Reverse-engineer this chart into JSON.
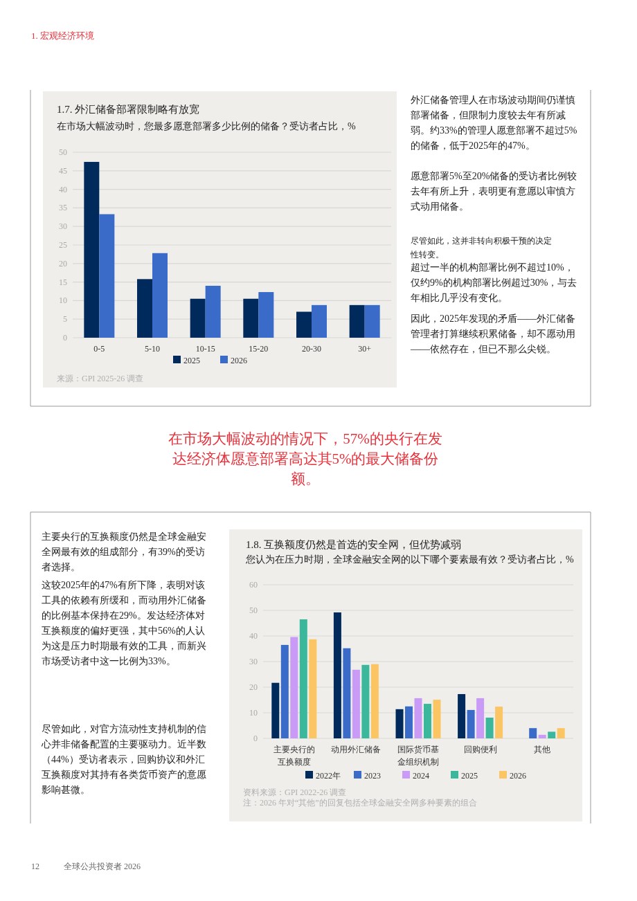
{
  "chart_data": [
    {
      "type": "other",
      "annotations": [
        "1. 宏观经济环境"
      ]
    },
    {
      "type": "bar",
      "title": "1.7. 外汇储备部署限制略有放宽",
      "subtitle": "在市场大幅波动时，您最多愿意部署多少比例的储备？受访者占比，%",
      "categories": [
        "0-5",
        "5-10",
        "10-15",
        "15-20",
        "20-30",
        "30+"
      ],
      "series": [
        {
          "name": "2025",
          "color": "#002a5c",
          "values": [
            47.4,
            15.8,
            10.5,
            10.5,
            7.0,
            8.8
          ]
        },
        {
          "name": "2026",
          "color": "#3a6bc8",
          "values": [
            33.3,
            22.8,
            14.0,
            12.3,
            8.8,
            8.8
          ]
        }
      ],
      "ylim": [
        0,
        50
      ],
      "yticks": [
        0,
        5,
        10,
        15,
        20,
        25,
        30,
        35,
        40,
        45,
        50
      ],
      "grid": "y",
      "legend": "bottom",
      "annotations": [
        "来源：GPI 2025-26 调查"
      ]
    },
    {
      "type": "other",
      "annotations": [
        "外汇储备管理人在市场波动期间仍谨慎部署储备，但限制力度较去年有所减弱。约33%的管理人愿意部署不超过5%的储备，低于2025年的47%。",
        "愿意部署5%至20%储备的受访者比例较去年有所上升，表明更有意愿以审慎方式动用储备。",
        "尽管如此，这并非转向积极干预的决定性转变。",
        "超过一半的机构部署比例不超过10%，仅约9%的机构部署比例超过30%，与去年相比几乎没有变化。",
        "因此，2025年发现的矛盾——外汇储备管理者打算继续积累储备，却不愿动用——依然存在，但已不那么尖锐。"
      ]
    },
    {
      "type": "other",
      "annotations": [
        "在市场大幅波动的情况下，57%的央行在发达经济体愿意部署高达其5%的最大储备份额。"
      ]
    },
    {
      "type": "other",
      "annotations": [
        "主要央行的互换额度仍然是全球金融安全网最有效的组成部分，有39%的受访者选择。",
        "这较2025年的47%有所下降，表明对该工具的依赖有所缓和，而动用外汇储备的比例基本保持在29%。发达经济体对互换额度的偏好更强，其中56%的人认为这是压力时期最有效的工具，而新兴市场受访者中这一比例为33%。",
        "尽管如此，对官方流动性支持机制的信心并非储备配置的主要驱动力。近半数（44%）受访者表示，回购协议和外汇互换额度对其持有各类货币资产的意愿影响甚微。"
      ]
    },
    {
      "type": "bar",
      "title": "1.8. 互换额度仍然是首选的安全网，但优势减弱",
      "subtitle": "您认为在压力时期，全球金融安全网的以下哪个要素最有效？受访者占比，%",
      "categories": [
        "主要央行的互换额度",
        "动用外汇储备",
        "国际货币基金组织机制",
        "回购便利",
        "其他"
      ],
      "series": [
        {
          "name": "2022年",
          "color": "#002a5c",
          "values": [
            21.7,
            49.2,
            11.4,
            17.3,
            null
          ]
        },
        {
          "name": "2023",
          "color": "#3a6bc8",
          "values": [
            36.5,
            35.2,
            12.5,
            11.1,
            4.0
          ]
        },
        {
          "name": "2024",
          "color": "#c99bf7",
          "values": [
            39.6,
            26.8,
            15.7,
            15.7,
            1.4
          ]
        },
        {
          "name": "2025",
          "color": "#3bb79c",
          "values": [
            46.5,
            28.7,
            13.5,
            8.1,
            2.6
          ]
        },
        {
          "name": "2026",
          "color": "#fcc563",
          "values": [
            38.7,
            29.0,
            15.1,
            12.4,
            4.0
          ]
        }
      ],
      "ylim": [
        0,
        60
      ],
      "yticks": [
        0,
        10,
        20,
        30,
        40,
        50,
        60
      ],
      "grid": "y",
      "legend": "bottom",
      "annotations": [
        "资料来源：GPI 2022-26 调查",
        "注：2026 年对“其他”的回复包括全球金融安全网多种要素的组合"
      ]
    },
    {
      "type": "other",
      "annotations": [
        "12",
        "全球公共投资者 2026"
      ]
    }
  ]
}
